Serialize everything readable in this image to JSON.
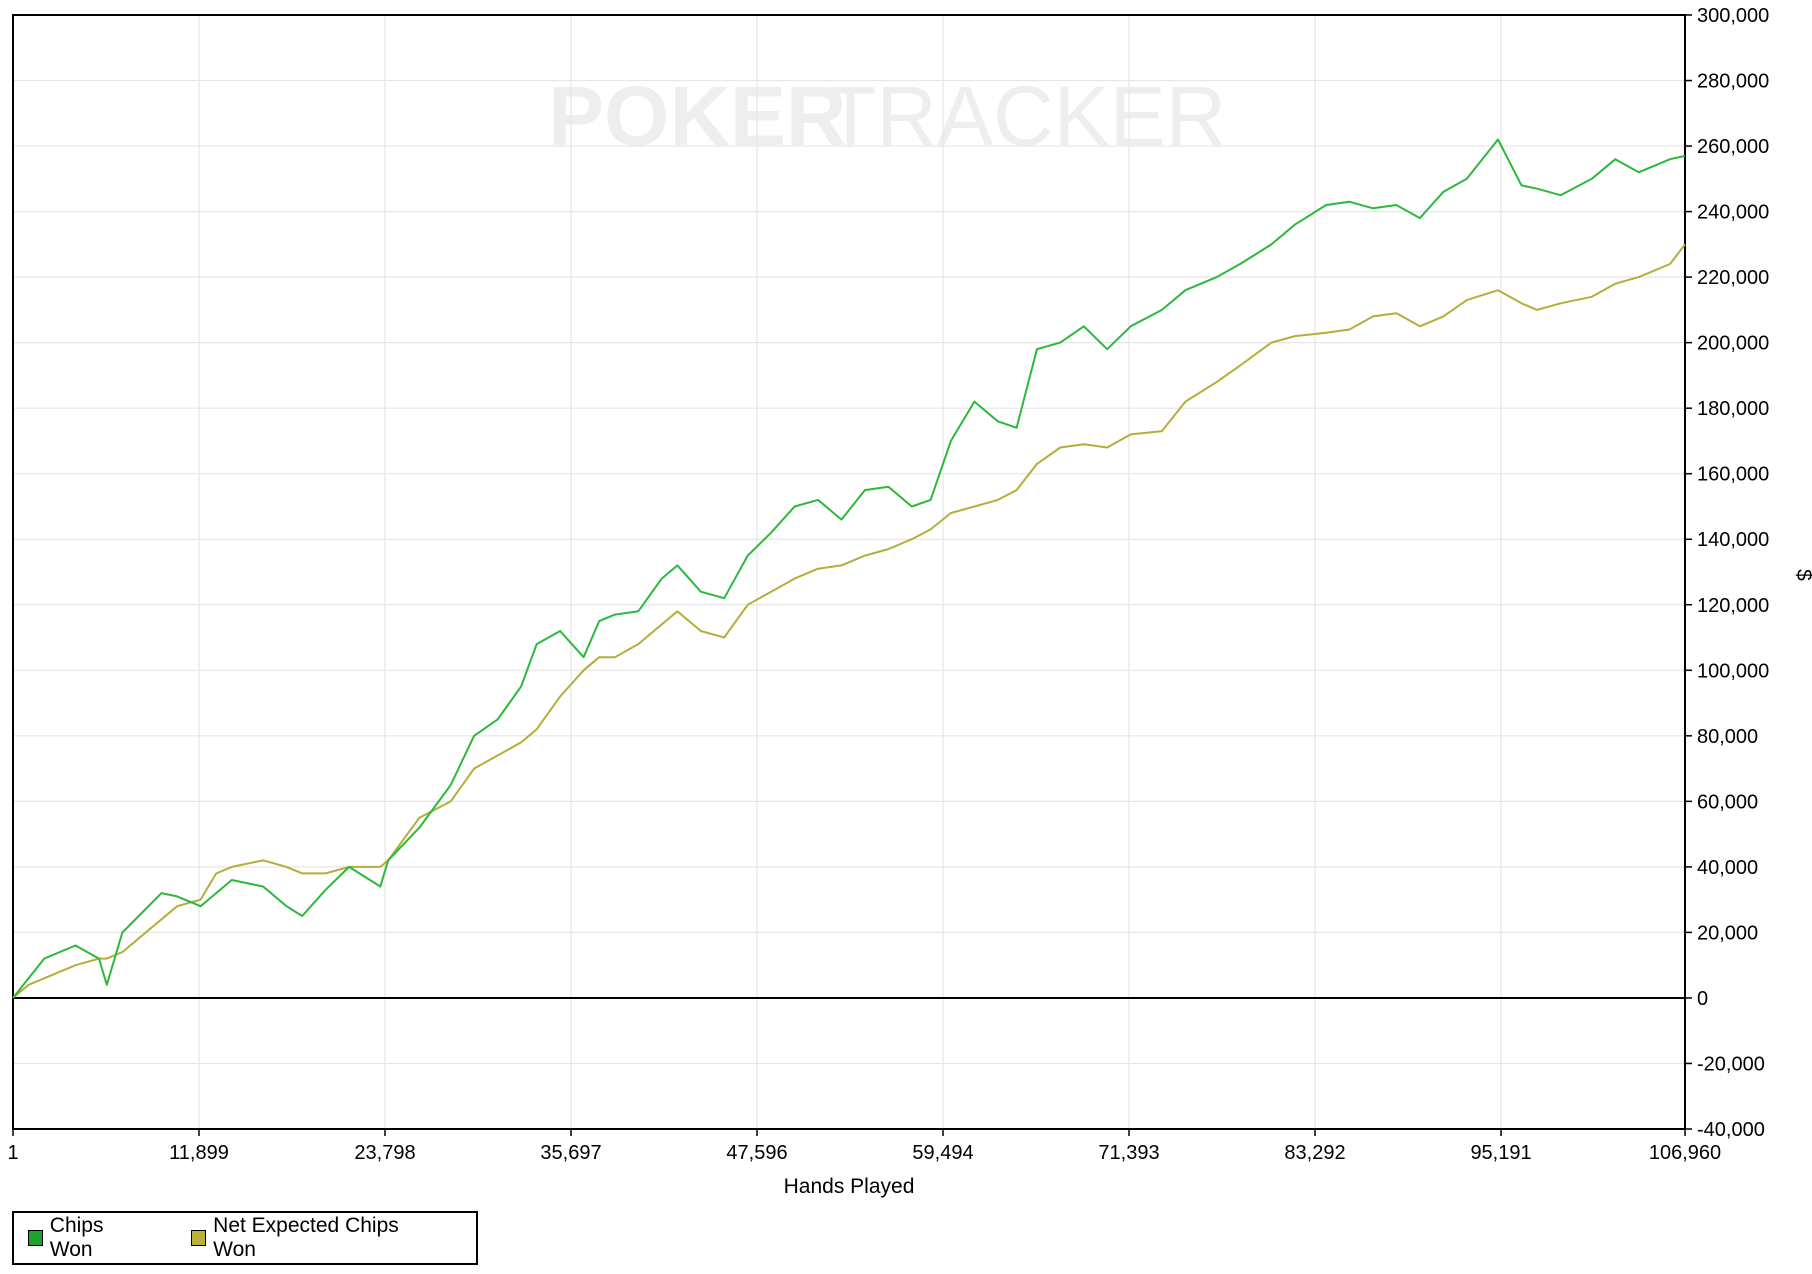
{
  "watermark": {
    "text_left": "POKER",
    "text_right": "TRACKER"
  },
  "chart_data": {
    "type": "line",
    "title": "",
    "xlabel": "Hands Played",
    "ylabel": "$",
    "xlim": [
      1,
      106960
    ],
    "ylim": [
      -40000,
      300000
    ],
    "x_ticks": [
      "1",
      "11,899",
      "23,798",
      "35,697",
      "47,596",
      "59,494",
      "71,393",
      "83,292",
      "95,191",
      "106,960"
    ],
    "y_ticks": [
      "300,000",
      "280,000",
      "260,000",
      "240,000",
      "220,000",
      "200,000",
      "180,000",
      "160,000",
      "140,000",
      "120,000",
      "100,000",
      "80,000",
      "60,000",
      "40,000",
      "20,000",
      "0",
      "-20,000",
      "-40,000"
    ],
    "grid": true,
    "legend_position": "bottom-left",
    "x": [
      1,
      1000,
      2000,
      4000,
      5500,
      6000,
      7000,
      9500,
      10500,
      12000,
      13000,
      14000,
      16000,
      17500,
      18500,
      20000,
      21500,
      23500,
      24000,
      26000,
      28000,
      29500,
      31000,
      32500,
      33500,
      35000,
      36500,
      37500,
      38500,
      40000,
      41500,
      42500,
      44000,
      45500,
      47000,
      48500,
      50000,
      51500,
      53000,
      54500,
      56000,
      57500,
      58700,
      60000,
      61500,
      63000,
      64200,
      65500,
      67000,
      68500,
      70000,
      71500,
      73500,
      75000,
      77000,
      78500,
      80500,
      82000,
      84000,
      85500,
      87000,
      88500,
      90000,
      91500,
      93000,
      95000,
      96500,
      97500,
      99000,
      101000,
      102500,
      104000,
      106000,
      106960
    ],
    "series": [
      {
        "name": "Chips Won",
        "color": "#2db83d",
        "values": [
          0,
          6000,
          12000,
          16000,
          12000,
          4000,
          20000,
          32000,
          31000,
          28000,
          32000,
          36000,
          34000,
          28000,
          25000,
          33000,
          40000,
          34000,
          42000,
          52000,
          65000,
          80000,
          85000,
          95000,
          108000,
          112000,
          104000,
          115000,
          117000,
          118000,
          128000,
          132000,
          124000,
          122000,
          135000,
          142000,
          150000,
          152000,
          146000,
          155000,
          156000,
          150000,
          152000,
          170000,
          182000,
          176000,
          174000,
          198000,
          200000,
          205000,
          198000,
          205000,
          210000,
          216000,
          220000,
          224000,
          230000,
          236000,
          242000,
          243000,
          241000,
          242000,
          238000,
          246000,
          250000,
          262000,
          248000,
          247000,
          245000,
          250000,
          256000,
          252000,
          256000,
          257000
        ]
      },
      {
        "name": "Net Expected Chips Won",
        "color": "#b5ae3a",
        "values": [
          0,
          4000,
          6000,
          10000,
          12000,
          12000,
          14000,
          24000,
          28000,
          30000,
          38000,
          40000,
          42000,
          40000,
          38000,
          38000,
          40000,
          40000,
          42000,
          55000,
          60000,
          70000,
          74000,
          78000,
          82000,
          92000,
          100000,
          104000,
          104000,
          108000,
          114000,
          118000,
          112000,
          110000,
          120000,
          124000,
          128000,
          131000,
          132000,
          135000,
          137000,
          140000,
          143000,
          148000,
          150000,
          152000,
          155000,
          163000,
          168000,
          169000,
          168000,
          172000,
          173000,
          182000,
          188000,
          193000,
          200000,
          202000,
          203000,
          204000,
          208000,
          209000,
          205000,
          208000,
          213000,
          216000,
          212000,
          210000,
          212000,
          214000,
          218000,
          220000,
          224000,
          230000
        ]
      }
    ]
  }
}
